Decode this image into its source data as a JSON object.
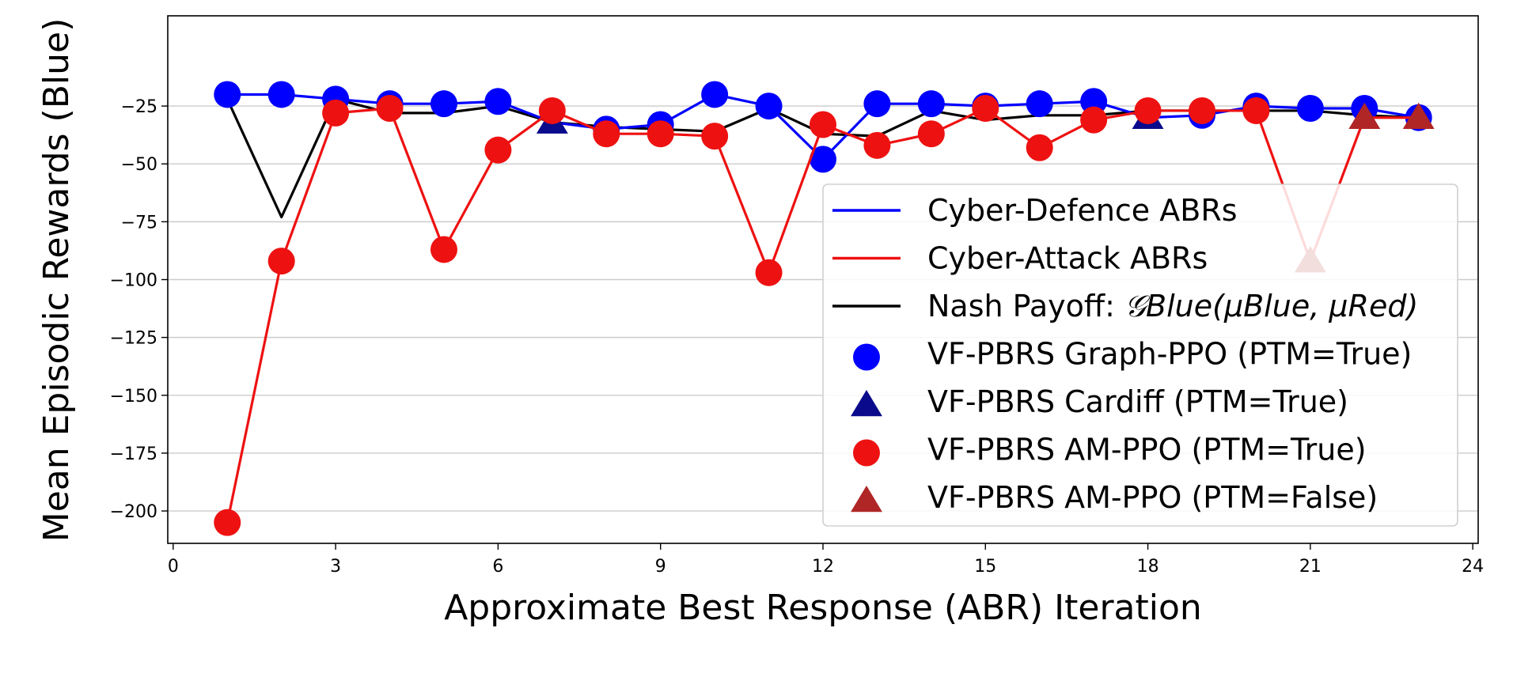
{
  "chart_data": {
    "type": "line",
    "title": "",
    "xlabel": "Approximate Best Response (ABR) Iteration",
    "ylabel": "Mean Episodic Rewards (Blue)",
    "xlim": [
      -0.1,
      24.1
    ],
    "ylim": [
      -214,
      14
    ],
    "xticks": [
      0,
      3,
      6,
      9,
      12,
      15,
      18,
      21,
      24
    ],
    "yticks": [
      -25,
      -50,
      -75,
      -100,
      -125,
      -150,
      -175,
      -200
    ],
    "ytick_labels": [
      "−25",
      "−50",
      "−75",
      "−100",
      "−125",
      "−150",
      "−175",
      "−200"
    ],
    "grid": "horizontal",
    "legend_position": "center-right",
    "colors": {
      "defence": "#0000ff",
      "attack": "#ee1111",
      "nash": "#000000",
      "cardiff": "#0a0a8c",
      "ampo_false": "#b02525",
      "grid": "#cccccc"
    },
    "series": [
      {
        "name": "Cyber-Defence ABRs",
        "color": "#0000ff",
        "points": [
          {
            "x": 1,
            "y": -20,
            "marker": "circle"
          },
          {
            "x": 2,
            "y": -20,
            "marker": "circle"
          },
          {
            "x": 3,
            "y": -22,
            "marker": "circle"
          },
          {
            "x": 4,
            "y": -24,
            "marker": "circle"
          },
          {
            "x": 5,
            "y": -24,
            "marker": "circle"
          },
          {
            "x": 6,
            "y": -23,
            "marker": "circle"
          },
          {
            "x": 7,
            "y": -32,
            "marker": "triangle"
          },
          {
            "x": 8,
            "y": -35,
            "marker": "circle"
          },
          {
            "x": 9,
            "y": -33,
            "marker": "circle"
          },
          {
            "x": 10,
            "y": -20,
            "marker": "circle"
          },
          {
            "x": 11,
            "y": -25,
            "marker": "circle"
          },
          {
            "x": 12,
            "y": -48,
            "marker": "circle"
          },
          {
            "x": 13,
            "y": -24,
            "marker": "circle"
          },
          {
            "x": 14,
            "y": -24,
            "marker": "circle"
          },
          {
            "x": 15,
            "y": -25,
            "marker": "circle"
          },
          {
            "x": 16,
            "y": -24,
            "marker": "circle"
          },
          {
            "x": 17,
            "y": -23,
            "marker": "circle"
          },
          {
            "x": 18,
            "y": -30,
            "marker": "triangle"
          },
          {
            "x": 19,
            "y": -29,
            "marker": "circle"
          },
          {
            "x": 20,
            "y": -25,
            "marker": "circle"
          },
          {
            "x": 21,
            "y": -26,
            "marker": "circle"
          },
          {
            "x": 22,
            "y": -26,
            "marker": "circle"
          },
          {
            "x": 23,
            "y": -30,
            "marker": "circle"
          }
        ]
      },
      {
        "name": "Cyber-Attack ABRs",
        "color": "#ee1111",
        "points": [
          {
            "x": 1,
            "y": -205,
            "marker": "circle"
          },
          {
            "x": 2,
            "y": -92,
            "marker": "circle"
          },
          {
            "x": 3,
            "y": -28,
            "marker": "circle"
          },
          {
            "x": 4,
            "y": -26,
            "marker": "circle"
          },
          {
            "x": 5,
            "y": -87,
            "marker": "circle"
          },
          {
            "x": 6,
            "y": -44,
            "marker": "circle"
          },
          {
            "x": 7,
            "y": -27,
            "marker": "circle"
          },
          {
            "x": 8,
            "y": -37,
            "marker": "circle"
          },
          {
            "x": 9,
            "y": -37,
            "marker": "circle"
          },
          {
            "x": 10,
            "y": -38,
            "marker": "circle"
          },
          {
            "x": 11,
            "y": -97,
            "marker": "circle"
          },
          {
            "x": 12,
            "y": -33,
            "marker": "circle"
          },
          {
            "x": 13,
            "y": -42,
            "marker": "circle"
          },
          {
            "x": 14,
            "y": -37,
            "marker": "circle"
          },
          {
            "x": 15,
            "y": -26,
            "marker": "circle"
          },
          {
            "x": 16,
            "y": -43,
            "marker": "circle"
          },
          {
            "x": 17,
            "y": -31,
            "marker": "circle"
          },
          {
            "x": 18,
            "y": -27,
            "marker": "circle"
          },
          {
            "x": 19,
            "y": -27,
            "marker": "circle"
          },
          {
            "x": 20,
            "y": -27,
            "marker": "circle"
          },
          {
            "x": 21,
            "y": -92,
            "marker": "triangle"
          },
          {
            "x": 22,
            "y": -30,
            "marker": "triangle"
          },
          {
            "x": 23,
            "y": -30,
            "marker": "triangle"
          }
        ]
      },
      {
        "name": "Nash Payoff",
        "color": "#000000",
        "points": [
          {
            "x": 1,
            "y": -22
          },
          {
            "x": 2,
            "y": -73
          },
          {
            "x": 3,
            "y": -22
          },
          {
            "x": 4,
            "y": -28
          },
          {
            "x": 5,
            "y": -28
          },
          {
            "x": 6,
            "y": -25
          },
          {
            "x": 7,
            "y": -32
          },
          {
            "x": 8,
            "y": -34
          },
          {
            "x": 9,
            "y": -35
          },
          {
            "x": 10,
            "y": -36
          },
          {
            "x": 11,
            "y": -26
          },
          {
            "x": 12,
            "y": -37
          },
          {
            "x": 13,
            "y": -38
          },
          {
            "x": 14,
            "y": -27
          },
          {
            "x": 15,
            "y": -31
          },
          {
            "x": 16,
            "y": -29
          },
          {
            "x": 17,
            "y": -29
          },
          {
            "x": 18,
            "y": -27
          },
          {
            "x": 19,
            "y": -27
          },
          {
            "x": 20,
            "y": -27
          },
          {
            "x": 21,
            "y": -27
          },
          {
            "x": 22,
            "y": -29
          },
          {
            "x": 23,
            "y": -30
          }
        ]
      }
    ],
    "legend": [
      {
        "label": "Cyber-Defence ABRs",
        "kind": "line",
        "color": "#0000ff"
      },
      {
        "label": "Cyber-Attack ABRs",
        "kind": "line",
        "color": "#ee1111"
      },
      {
        "label": "Nash Payoff: ",
        "kind": "line",
        "color": "#000000",
        "math": "𝒢Blue(μBlue, μRed)"
      },
      {
        "label": "VF-PBRS Graph-PPO (PTM=True)",
        "kind": "circle",
        "color": "#0000ff"
      },
      {
        "label": "VF-PBRS Cardiff (PTM=True)",
        "kind": "triangle",
        "color": "#0a0a8c"
      },
      {
        "label": "VF-PBRS AM-PPO (PTM=True)",
        "kind": "circle",
        "color": "#ee1111"
      },
      {
        "label": "VF-PBRS AM-PPO (PTM=False)",
        "kind": "triangle",
        "color": "#b02525"
      }
    ]
  }
}
